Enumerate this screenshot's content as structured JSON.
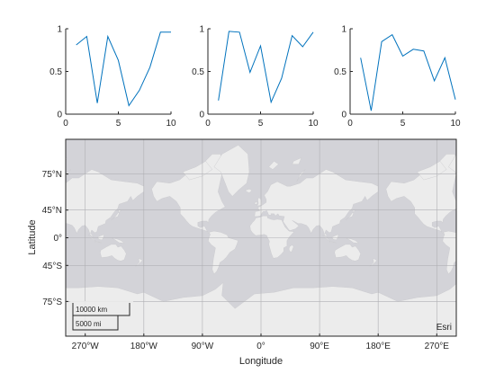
{
  "chart_data": [
    {
      "type": "line",
      "x": [
        1,
        2,
        3,
        4,
        5,
        6,
        7,
        8,
        9,
        10
      ],
      "series": [
        {
          "values": [
            0.81,
            0.91,
            0.13,
            0.91,
            0.63,
            0.1,
            0.28,
            0.55,
            0.96,
            0.96
          ]
        }
      ],
      "xlim": [
        0,
        10
      ],
      "ylim": [
        0,
        1
      ],
      "xticks": [
        "0",
        "5",
        "10"
      ],
      "yticks": [
        "0",
        "0.5",
        "1"
      ],
      "color": "#0072BD"
    },
    {
      "type": "line",
      "x": [
        1,
        2,
        3,
        4,
        5,
        6,
        7,
        8,
        9,
        10
      ],
      "series": [
        {
          "values": [
            0.16,
            0.97,
            0.96,
            0.49,
            0.8,
            0.14,
            0.42,
            0.92,
            0.79,
            0.96
          ]
        }
      ],
      "xlim": [
        0,
        10
      ],
      "ylim": [
        0,
        1
      ],
      "xticks": [
        "0",
        "5",
        "10"
      ],
      "yticks": [
        "0",
        "0.5",
        "1"
      ],
      "color": "#0072BD"
    },
    {
      "type": "line",
      "x": [
        1,
        2,
        3,
        4,
        5,
        6,
        7,
        8,
        9,
        10
      ],
      "series": [
        {
          "values": [
            0.66,
            0.04,
            0.85,
            0.93,
            0.68,
            0.76,
            0.74,
            0.39,
            0.66,
            0.17
          ]
        }
      ],
      "xlim": [
        0,
        10
      ],
      "ylim": [
        0,
        1
      ],
      "xticks": [
        "0",
        "5",
        "10"
      ],
      "yticks": [
        "0",
        "0.5",
        "1"
      ],
      "color": "#0072BD"
    }
  ],
  "map": {
    "xlabel": "Longitude",
    "ylabel": "Latitude",
    "lon_ticks": [
      {
        "value": -270,
        "label": "270°W"
      },
      {
        "value": -180,
        "label": "180°W"
      },
      {
        "value": -90,
        "label": "90°W"
      },
      {
        "value": 0,
        "label": "0°"
      },
      {
        "value": 90,
        "label": "90°E"
      },
      {
        "value": 180,
        "label": "180°E"
      },
      {
        "value": 270,
        "label": "270°E"
      }
    ],
    "lat_ticks": [
      {
        "value": 75,
        "label": "75°N"
      },
      {
        "value": 45,
        "label": "45°N"
      },
      {
        "value": 0,
        "label": "0°"
      },
      {
        "value": -45,
        "label": "45°S"
      },
      {
        "value": -75,
        "label": "75°S"
      }
    ],
    "lon_range": [
      -300,
      300
    ],
    "lat_range": [
      -85,
      85
    ],
    "grid": true,
    "scalebar": {
      "top_label": "10000 km",
      "bottom_label": "5000 mi"
    },
    "attribution": "Esri",
    "ocean_color": "#d3d3d8",
    "land_color": "#ececec",
    "border_color": "#c8c8cc",
    "grid_color": "#b0b0b4"
  }
}
